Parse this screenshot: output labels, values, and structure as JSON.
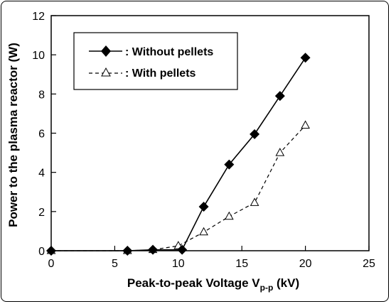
{
  "chart_data": {
    "type": "line",
    "xlabel_main": "Peak-to-peak Voltage V",
    "xlabel_sub": "p-p",
    "xlabel_unit": " (kV)",
    "ylabel": "Power to the plasma reactor (W)",
    "xlim": [
      0,
      25
    ],
    "ylim": [
      0,
      12
    ],
    "xticks": [
      0,
      5,
      10,
      15,
      20,
      25
    ],
    "yticks": [
      0,
      2,
      4,
      6,
      8,
      10,
      12
    ],
    "grid": false,
    "legend_position": "top-left",
    "series": [
      {
        "name": ": Without pellets",
        "marker": "filled-diamond",
        "line": "solid",
        "color": "#000000",
        "x": [
          0,
          6,
          8,
          10.3,
          12,
          14,
          16,
          18,
          20
        ],
        "y": [
          0,
          0,
          0.05,
          0.05,
          2.25,
          4.4,
          5.95,
          7.9,
          9.85
        ]
      },
      {
        "name": ": With pellets",
        "marker": "open-triangle",
        "line": "dashed",
        "color": "#000000",
        "x": [
          0,
          6,
          8,
          10,
          12,
          14,
          16,
          18,
          20
        ],
        "y": [
          0,
          0,
          0.05,
          0.25,
          0.95,
          1.75,
          2.45,
          5.0,
          6.4
        ]
      }
    ]
  }
}
